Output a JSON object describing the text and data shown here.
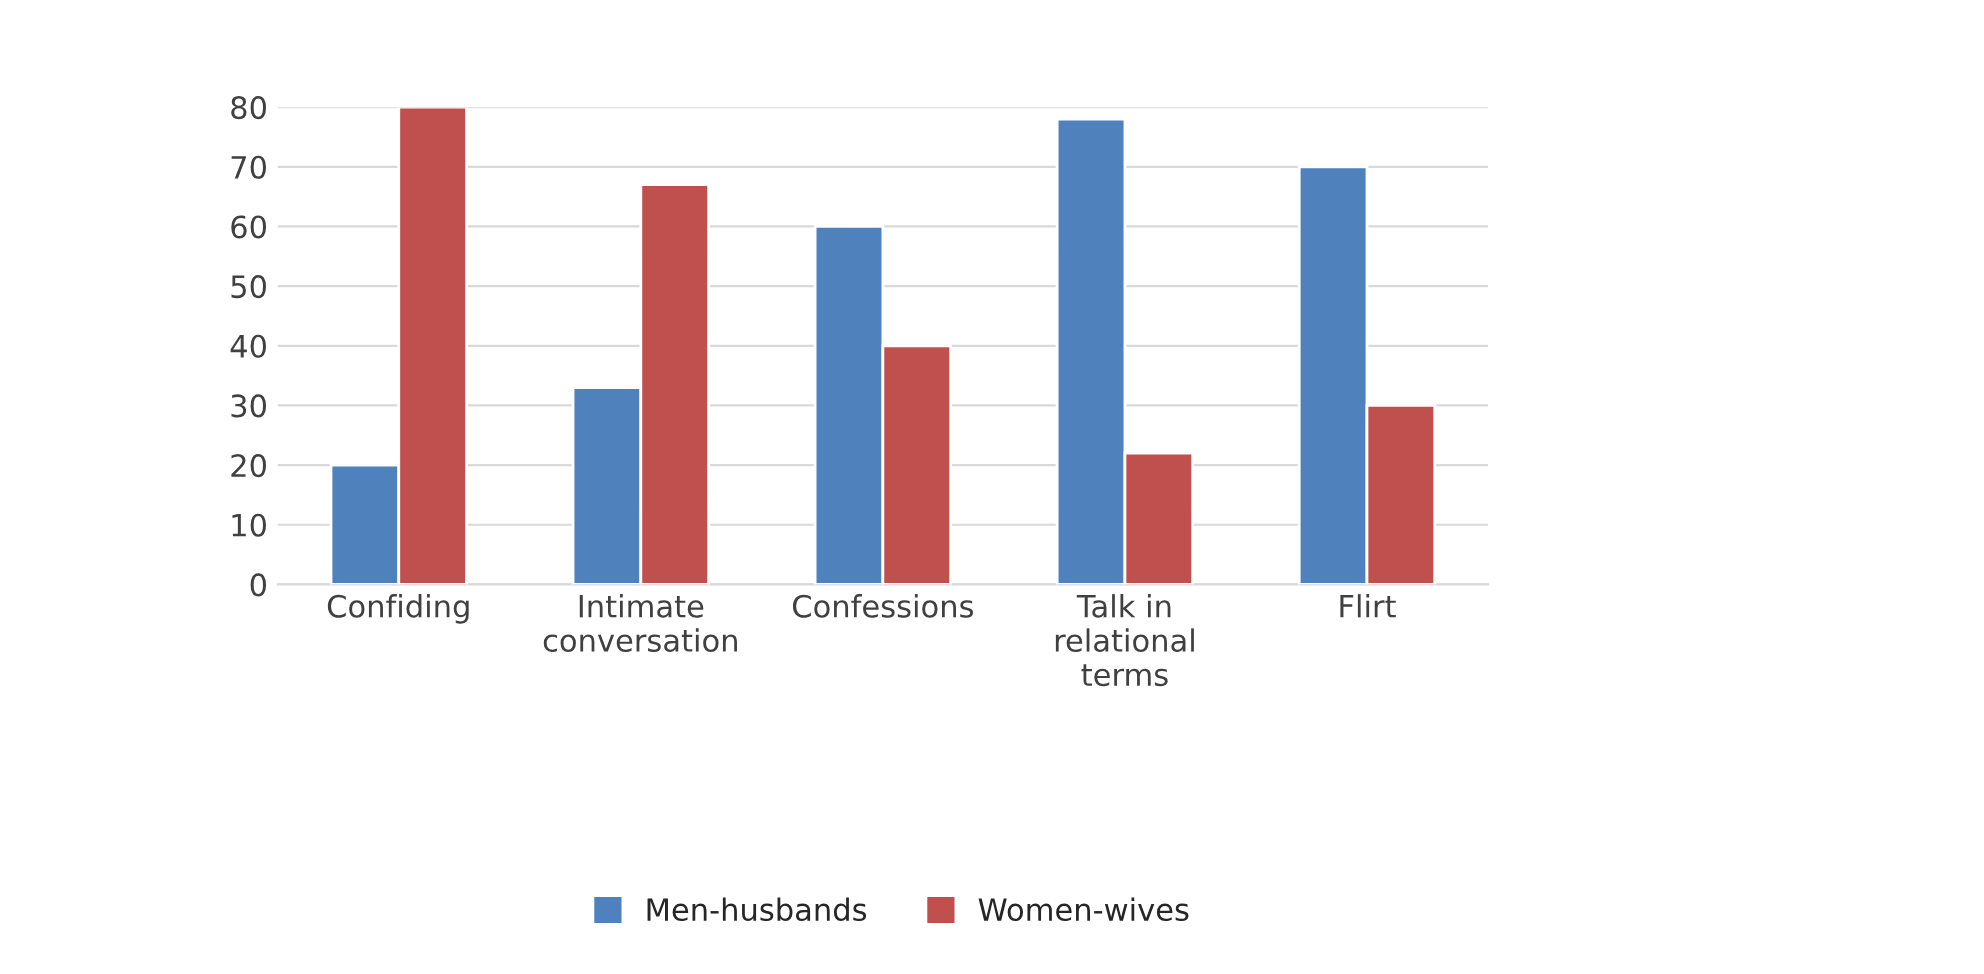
{
  "chart_data": {
    "type": "bar",
    "categories": [
      "Confiding",
      "Intimate\nconversation",
      "Confessions",
      "Talk in\nrelational\nterms",
      "Flirt"
    ],
    "series": [
      {
        "name": "Men-husbands",
        "color": "#4f81bd",
        "values": [
          20,
          33,
          60,
          78,
          70
        ]
      },
      {
        "name": "Women-wives",
        "color": "#c0504d",
        "values": [
          80,
          67,
          40,
          22,
          30
        ]
      }
    ],
    "ylim": [
      0,
      80
    ],
    "yticks": [
      0,
      10,
      20,
      30,
      40,
      50,
      60,
      70,
      80
    ],
    "grid": "y",
    "legend": "bottom"
  }
}
